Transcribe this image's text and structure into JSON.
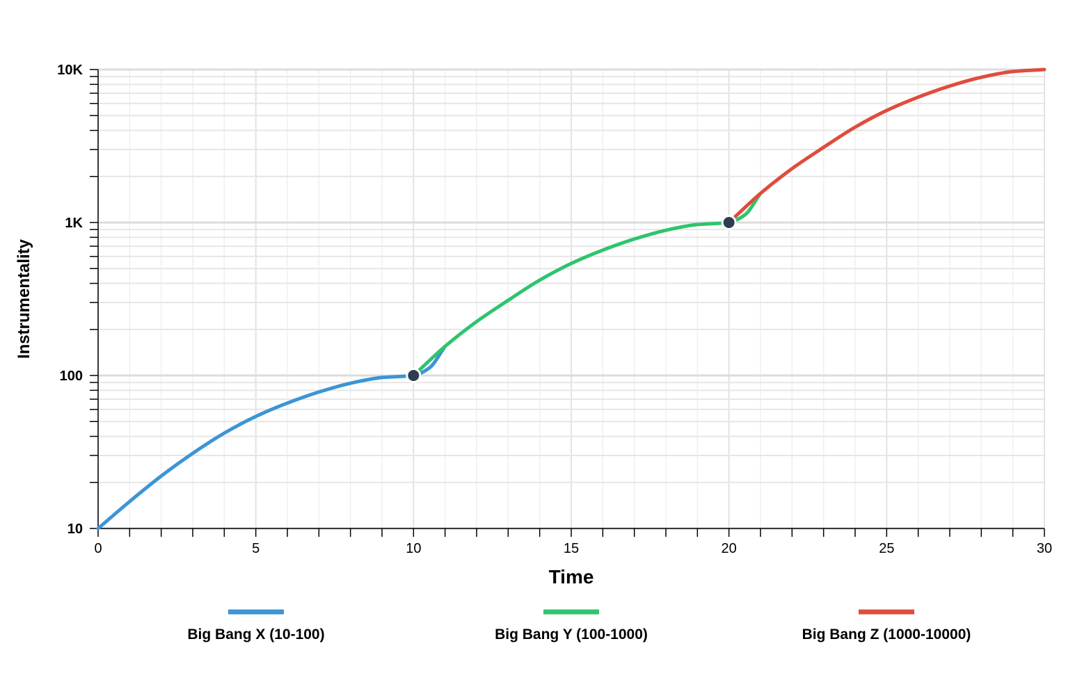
{
  "chart_data": {
    "type": "line",
    "xlabel": "Time",
    "ylabel": "Instrumentality",
    "xlim": [
      0,
      30
    ],
    "ylim": [
      10,
      10000
    ],
    "yscale": "log",
    "grid": true,
    "legend_position": "bottom",
    "x_ticks": [
      "0",
      "5",
      "10",
      "15",
      "20",
      "25",
      "30"
    ],
    "y_ticks": [
      "10",
      "100",
      "1K",
      "10K"
    ],
    "series": [
      {
        "name": "Big Bang X (10-100)",
        "color": "#3b95d6",
        "x": [
          0,
          1,
          2,
          3,
          4,
          5,
          6,
          7,
          8,
          9,
          10,
          10.5,
          11
        ],
        "y": [
          10,
          15,
          22,
          31,
          42,
          54,
          66,
          78,
          89,
          97,
          100,
          112,
          155
        ]
      },
      {
        "name": "Big Bang Y (100-1000)",
        "color": "#2fc46d",
        "x": [
          10,
          11,
          12,
          13,
          14,
          15,
          16,
          17,
          18,
          19,
          20,
          20.5,
          21
        ],
        "y": [
          100,
          155,
          225,
          310,
          420,
          540,
          660,
          780,
          890,
          970,
          1000,
          1120,
          1550
        ]
      },
      {
        "name": "Big Bang Z (1000-10000)",
        "color": "#e04c3c",
        "x": [
          20,
          21,
          22,
          23,
          24,
          25,
          26,
          27,
          28,
          29,
          30
        ],
        "y": [
          1000,
          1550,
          2250,
          3100,
          4200,
          5400,
          6600,
          7800,
          8900,
          9700,
          10000
        ]
      }
    ],
    "markers": [
      {
        "x": 10,
        "y": 100
      },
      {
        "x": 20,
        "y": 1000
      }
    ]
  }
}
